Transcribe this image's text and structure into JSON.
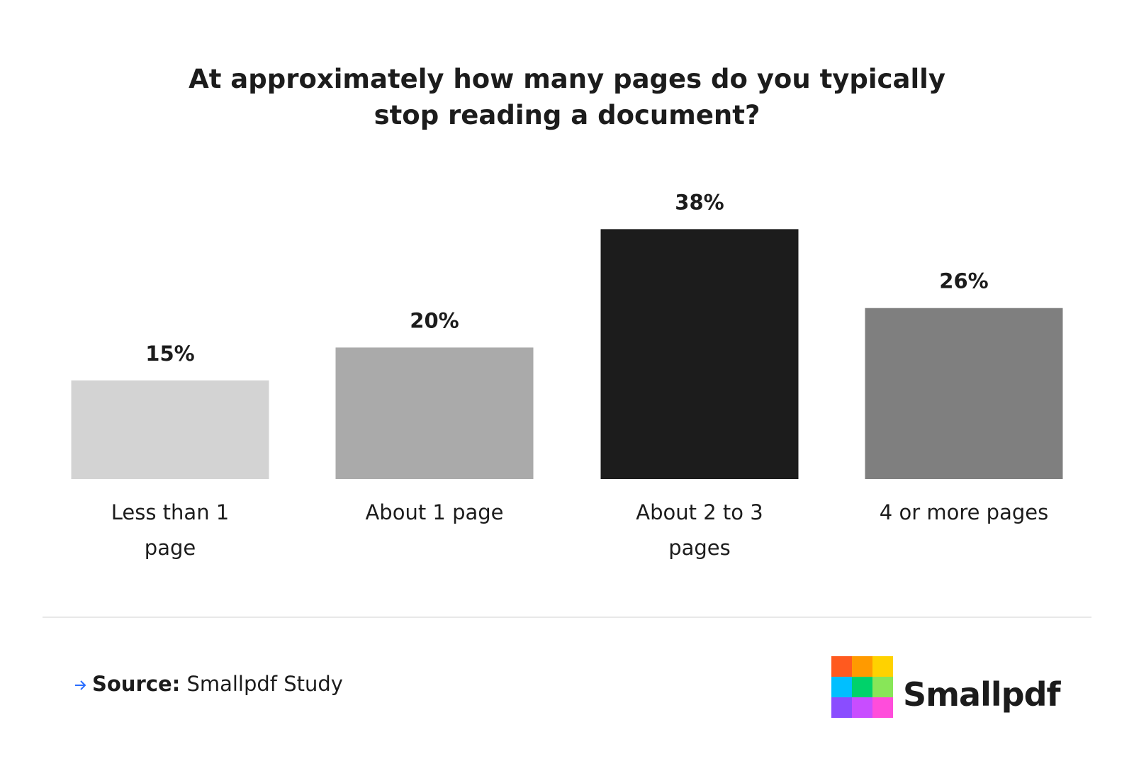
{
  "chart_data": {
    "type": "bar",
    "title": "At approximately how many pages do you typically\nstop reading a document?",
    "categories": [
      "Less than 1\npage",
      "About 1 page",
      "About 2 to 3\npages",
      "4 or more pages"
    ],
    "values": [
      15,
      20,
      38,
      26
    ],
    "value_labels": [
      "15%",
      "20%",
      "38%",
      "26%"
    ],
    "colors": [
      "#d3d3d3",
      "#aaaaaa",
      "#1c1c1c",
      "#7f7f7f"
    ]
  },
  "footer": {
    "source_label": "Source:",
    "source_text": "Smallpdf Study",
    "brand": "Smallpdf"
  }
}
